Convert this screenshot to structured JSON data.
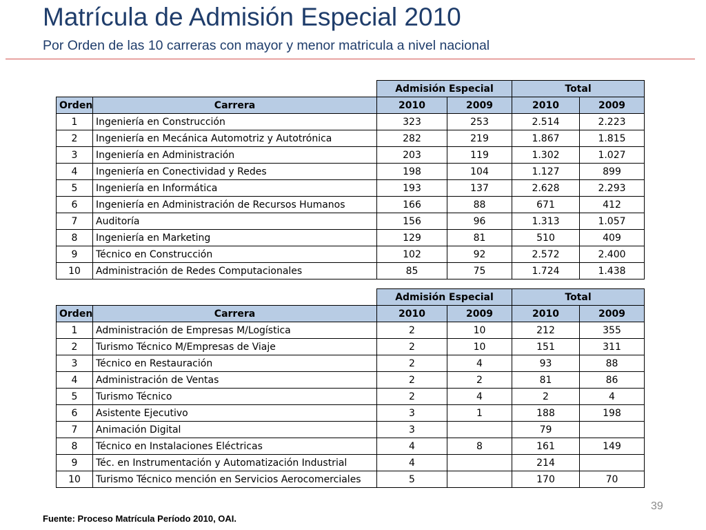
{
  "slide": {
    "title": "Matrícula de Admisión Especial 2010",
    "subtitle": "Por Orden de las 10 carreras con mayor y menor matricula a nivel nacional",
    "page_number": "39",
    "source": "Fuente: Proceso Matrícula Período 2010, OAI."
  },
  "header": {
    "group_admision": "Admisión Especial",
    "group_total": "Total",
    "col_orden": "Orden",
    "col_carrera": "Carrera",
    "year_2010": "2010",
    "year_2009": "2009"
  },
  "top_table": [
    {
      "orden": "1",
      "carrera": "Ingeniería en Construcción",
      "ae_2010": "323",
      "ae_2009": "253",
      "tot_2010": "2.514",
      "tot_2009": "2.223"
    },
    {
      "orden": "2",
      "carrera": "Ingeniería en Mecánica Automotriz y Autotrónica",
      "ae_2010": "282",
      "ae_2009": "219",
      "tot_2010": "1.867",
      "tot_2009": "1.815"
    },
    {
      "orden": "3",
      "carrera": "Ingeniería en Administración",
      "ae_2010": "203",
      "ae_2009": "119",
      "tot_2010": "1.302",
      "tot_2009": "1.027"
    },
    {
      "orden": "4",
      "carrera": "Ingeniería en Conectividad y Redes",
      "ae_2010": "198",
      "ae_2009": "104",
      "tot_2010": "1.127",
      "tot_2009": "899"
    },
    {
      "orden": "5",
      "carrera": "Ingeniería en Informática",
      "ae_2010": "193",
      "ae_2009": "137",
      "tot_2010": "2.628",
      "tot_2009": "2.293"
    },
    {
      "orden": "6",
      "carrera": "Ingeniería en Administración de Recursos Humanos",
      "ae_2010": "166",
      "ae_2009": "88",
      "tot_2010": "671",
      "tot_2009": "412"
    },
    {
      "orden": "7",
      "carrera": "Auditoría",
      "ae_2010": "156",
      "ae_2009": "96",
      "tot_2010": "1.313",
      "tot_2009": "1.057"
    },
    {
      "orden": "8",
      "carrera": "Ingeniería en Marketing",
      "ae_2010": "129",
      "ae_2009": "81",
      "tot_2010": "510",
      "tot_2009": "409"
    },
    {
      "orden": "9",
      "carrera": "Técnico en Construcción",
      "ae_2010": "102",
      "ae_2009": "92",
      "tot_2010": "2.572",
      "tot_2009": "2.400"
    },
    {
      "orden": "10",
      "carrera": "Administración de Redes Computacionales",
      "ae_2010": "85",
      "ae_2009": "75",
      "tot_2010": "1.724",
      "tot_2009": "1.438"
    }
  ],
  "bottom_table": [
    {
      "orden": "1",
      "carrera": "Administración de Empresas M/Logística",
      "ae_2010": "2",
      "ae_2009": "10",
      "tot_2010": "212",
      "tot_2009": "355"
    },
    {
      "orden": "2",
      "carrera": "Turismo Técnico M/Empresas de Viaje",
      "ae_2010": "2",
      "ae_2009": "10",
      "tot_2010": "151",
      "tot_2009": "311"
    },
    {
      "orden": "3",
      "carrera": "Técnico en Restauración",
      "ae_2010": "2",
      "ae_2009": "4",
      "tot_2010": "93",
      "tot_2009": "88"
    },
    {
      "orden": "4",
      "carrera": "Administración de Ventas",
      "ae_2010": "2",
      "ae_2009": "2",
      "tot_2010": "81",
      "tot_2009": "86"
    },
    {
      "orden": "5",
      "carrera": "Turismo Técnico",
      "ae_2010": "2",
      "ae_2009": "4",
      "tot_2010": "2",
      "tot_2009": "4"
    },
    {
      "orden": "6",
      "carrera": "Asistente Ejecutivo",
      "ae_2010": "3",
      "ae_2009": "1",
      "tot_2010": "188",
      "tot_2009": "198"
    },
    {
      "orden": "7",
      "carrera": "Animación Digital",
      "ae_2010": "3",
      "ae_2009": "",
      "tot_2010": "79",
      "tot_2009": ""
    },
    {
      "orden": "8",
      "carrera": "Técnico en Instalaciones Eléctricas",
      "ae_2010": "4",
      "ae_2009": "8",
      "tot_2010": "161",
      "tot_2009": "149"
    },
    {
      "orden": "9",
      "carrera": "Téc. en Instrumentación y Automatización Industrial",
      "ae_2010": "4",
      "ae_2009": "",
      "tot_2010": "214",
      "tot_2009": ""
    },
    {
      "orden": "10",
      "carrera": "Turismo Técnico mención en Servicios Aerocomerciales",
      "ae_2010": "5",
      "ae_2009": "",
      "tot_2010": "170",
      "tot_2009": "70"
    }
  ]
}
